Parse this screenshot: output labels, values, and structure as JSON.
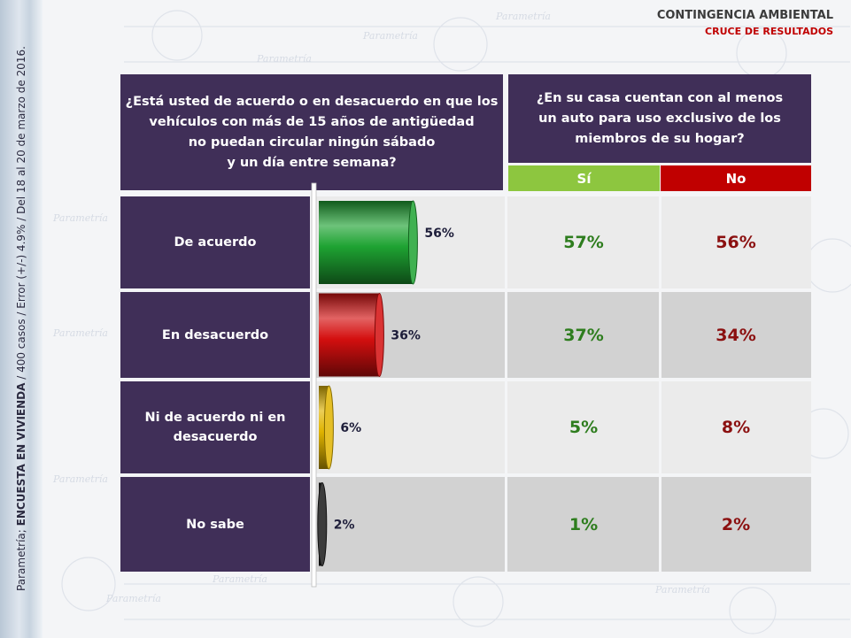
{
  "header": {
    "title": "CONTINGENCIA AMBIENTAL",
    "subtitle": "CRUCE DE RESULTADOS"
  },
  "side": {
    "prefix": "Parametría; ",
    "bold": "ENCUESTA EN VIVIENDA",
    "suffix": " / 400 casos / Error (+/-) 4.9% / Del 18 al 20 de marzo de 2016."
  },
  "question1": {
    "lines": [
      "¿Está usted de acuerdo o en desacuerdo en que los",
      "vehículos con más de 15 años de antigüedad",
      "no puedan circular ningún sábado",
      "y un día entre semana?"
    ]
  },
  "question2": {
    "lines": [
      "¿En su casa cuentan con al menos",
      "un auto para uso exclusivo de los",
      "miembros de su hogar?"
    ]
  },
  "columns": {
    "si": "Sí",
    "no": "No"
  },
  "rows": [
    {
      "label_lines": [
        "De acuerdo"
      ],
      "si": "57%",
      "no": "56%"
    },
    {
      "label_lines": [
        "En desacuerdo"
      ],
      "si": "37%",
      "no": "34%"
    },
    {
      "label_lines": [
        "Ni de acuerdo ni en",
        "desacuerdo"
      ],
      "si": "5%",
      "no": "8%"
    },
    {
      "label_lines": [
        "No sabe"
      ],
      "si": "1%",
      "no": "2%"
    }
  ],
  "chart_data": {
    "type": "bar",
    "orientation": "horizontal",
    "categories": [
      "De acuerdo",
      "En desacuerdo",
      "Ni de acuerdo ni en desacuerdo",
      "No sabe"
    ],
    "values": [
      56,
      36,
      6,
      2
    ],
    "data_labels": [
      "56%",
      "36%",
      "6%",
      "2%"
    ],
    "colors": [
      "#1ea332",
      "#d40f0f",
      "#e0b400",
      "#1a1a1a"
    ],
    "xlim": [
      0,
      100
    ]
  },
  "colors": {
    "panel": "#402f58",
    "si": "#8dc63f",
    "no": "#c00000",
    "si_text": "#2e7d1e",
    "no_text": "#8b1010",
    "header_red": "#c00000"
  },
  "watermark": "Parametría"
}
